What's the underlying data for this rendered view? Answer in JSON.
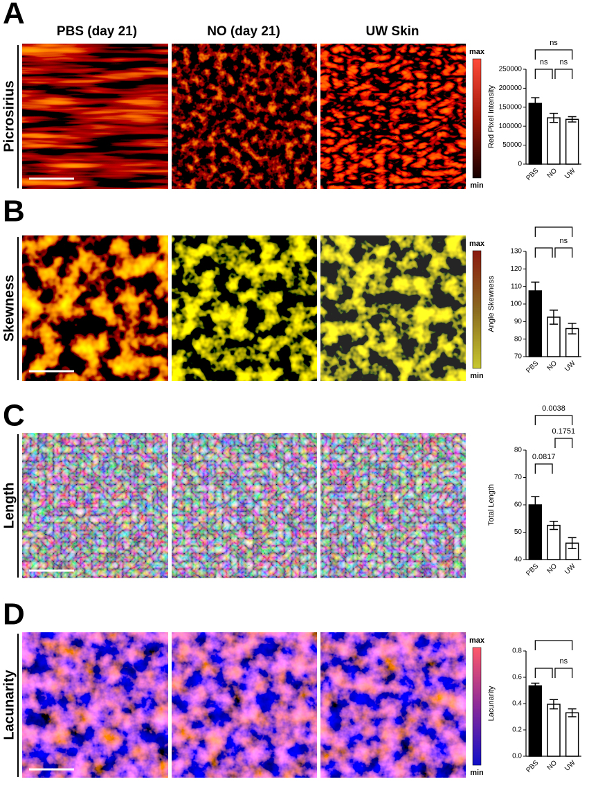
{
  "columns": [
    "PBS (day 21)",
    "NO (day 21)",
    "UW Skin"
  ],
  "panels": [
    {
      "letter": "A",
      "row_label": "Picrosirius",
      "colorbar": [
        "max",
        "min"
      ]
    },
    {
      "letter": "B",
      "row_label": "Skewness",
      "colorbar": [
        "max",
        "min"
      ]
    },
    {
      "letter": "C",
      "row_label": "Length"
    },
    {
      "letter": "D",
      "row_label": "Lacunarity",
      "colorbar": [
        "max",
        "min"
      ]
    }
  ],
  "chart_data": [
    {
      "type": "bar",
      "ylabel": "Red Pixel Intensity",
      "categories": [
        "PBS",
        "NO",
        "UW"
      ],
      "values": [
        160000,
        122000,
        118000
      ],
      "errors": [
        15000,
        12000,
        7000
      ],
      "bar_colors": [
        "#000000",
        "#ffffff",
        "#ffffff"
      ],
      "ylim": [
        0,
        250000
      ],
      "yticks": [
        0,
        50000,
        100000,
        150000,
        200000,
        250000
      ],
      "comparisons": [
        {
          "pair": [
            0,
            2
          ],
          "label": "ns"
        },
        {
          "pair": [
            0,
            1
          ],
          "label": "ns"
        },
        {
          "pair": [
            1,
            2
          ],
          "label": "ns"
        }
      ]
    },
    {
      "type": "bar",
      "ylabel": "Angle Skewness",
      "categories": [
        "PBS",
        "NO",
        "UW"
      ],
      "values": [
        107.5,
        92.5,
        86
      ],
      "errors": [
        5,
        4,
        3
      ],
      "bar_colors": [
        "#000000",
        "#ffffff",
        "#ffffff"
      ],
      "ylim": [
        70,
        130
      ],
      "yticks": [
        70,
        80,
        90,
        100,
        110,
        120,
        130
      ],
      "comparisons": [
        {
          "pair": [
            0,
            2
          ]
        },
        {
          "pair": [
            0,
            1
          ]
        },
        {
          "pair": [
            1,
            2
          ],
          "label": "ns"
        }
      ]
    },
    {
      "type": "bar",
      "ylabel": "Total Length",
      "categories": [
        "PBS",
        "NO",
        "UW"
      ],
      "values": [
        60,
        52.5,
        46
      ],
      "errors": [
        3,
        1.5,
        2
      ],
      "bar_colors": [
        "#000000",
        "#ffffff",
        "#ffffff"
      ],
      "ylim": [
        40,
        80
      ],
      "yticks": [
        40,
        50,
        60,
        70,
        80
      ],
      "comparisons": [
        {
          "pair": [
            0,
            2
          ],
          "label": "0.0038"
        },
        {
          "pair": [
            1,
            2
          ],
          "label": "0.1751"
        },
        {
          "pair": [
            0,
            1
          ],
          "label": "0.0817"
        }
      ]
    },
    {
      "type": "bar",
      "ylabel": "Lacunarity",
      "categories": [
        "PBS",
        "NO",
        "UW"
      ],
      "values": [
        0.535,
        0.395,
        0.33
      ],
      "errors": [
        0.02,
        0.035,
        0.03
      ],
      "bar_colors": [
        "#000000",
        "#ffffff",
        "#ffffff"
      ],
      "ylim": [
        0,
        0.8
      ],
      "yticks": [
        {
          "value": 0,
          "label": "0.0"
        },
        0.2,
        0.4,
        0.6,
        0.8
      ],
      "comparisons": [
        {
          "pair": [
            0,
            2
          ]
        },
        {
          "pair": [
            0,
            1
          ]
        },
        {
          "pair": [
            1,
            2
          ],
          "label": "ns"
        }
      ]
    }
  ]
}
